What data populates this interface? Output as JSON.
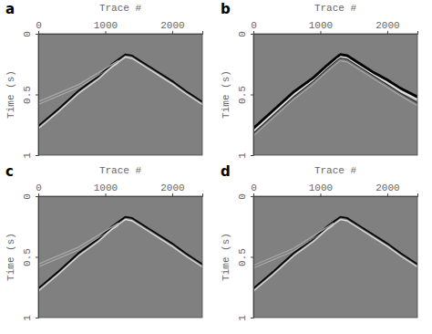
{
  "chart_data": [
    {
      "type": "line",
      "title": "a",
      "x_label": "Trace #",
      "y_label": "Time (s)",
      "xlim": [
        0,
        2450
      ],
      "ylim": [
        0,
        1
      ],
      "xticks": [
        0,
        1000,
        2000
      ],
      "yticks": [
        0,
        0.5,
        1
      ],
      "series": [
        {
          "color": "#000000",
          "x": [
            0,
            300,
            600,
            900,
            1100,
            1250,
            1300,
            1400,
            1600,
            1800,
            2000,
            2200,
            2450
          ],
          "values": [
            0.76,
            0.62,
            0.47,
            0.35,
            0.25,
            0.19,
            0.17,
            0.18,
            0.25,
            0.32,
            0.39,
            0.47,
            0.56
          ]
        },
        {
          "color": "#a8a8a8",
          "x": [
            0,
            600,
            1200
          ],
          "values": [
            0.56,
            0.42,
            0.22
          ]
        }
      ]
    },
    {
      "type": "line",
      "title": "b",
      "x_label": "Trace #",
      "y_label": "Time (s)",
      "xlim": [
        0,
        2450
      ],
      "ylim": [
        0,
        1
      ],
      "xticks": [
        0,
        1000,
        2000
      ],
      "yticks": [
        0,
        0.5,
        1
      ],
      "series": [
        {
          "color": "#000000",
          "x": [
            0,
            300,
            600,
            900,
            1100,
            1250,
            1300,
            1400,
            1600,
            1800,
            2000,
            2200,
            2450
          ],
          "values": [
            0.78,
            0.63,
            0.48,
            0.36,
            0.26,
            0.19,
            0.17,
            0.18,
            0.25,
            0.32,
            0.38,
            0.45,
            0.52
          ]
        },
        {
          "color": "#303030",
          "x": [
            0,
            300,
            600,
            900,
            1100,
            1250,
            1300,
            1400,
            1600,
            1800,
            2000,
            2200,
            2450
          ],
          "values": [
            0.82,
            0.67,
            0.52,
            0.39,
            0.29,
            0.22,
            0.2,
            0.21,
            0.28,
            0.35,
            0.42,
            0.49,
            0.57
          ]
        }
      ]
    },
    {
      "type": "line",
      "title": "c",
      "x_label": "Trace #",
      "y_label": "Time (s)",
      "xlim": [
        0,
        2450
      ],
      "ylim": [
        0,
        1
      ],
      "xticks": [
        0,
        1000,
        2000
      ],
      "yticks": [
        0,
        0.5,
        1
      ],
      "series": [
        {
          "color": "#000000",
          "x": [
            0,
            300,
            600,
            900,
            1100,
            1250,
            1300,
            1400,
            1600,
            1800,
            2000,
            2200,
            2450
          ],
          "values": [
            0.76,
            0.62,
            0.47,
            0.35,
            0.25,
            0.19,
            0.17,
            0.18,
            0.25,
            0.32,
            0.39,
            0.47,
            0.56
          ]
        },
        {
          "color": "#a8a8a8",
          "x": [
            0,
            600,
            1200
          ],
          "values": [
            0.56,
            0.42,
            0.22
          ]
        }
      ]
    },
    {
      "type": "line",
      "title": "d",
      "x_label": "Trace #",
      "y_label": "Time (s)",
      "xlim": [
        0,
        2450
      ],
      "ylim": [
        0,
        1
      ],
      "xticks": [
        0,
        1000,
        2000
      ],
      "yticks": [
        0,
        0.5,
        1
      ],
      "series": [
        {
          "color": "#000000",
          "x": [
            0,
            300,
            600,
            900,
            1100,
            1250,
            1300,
            1400,
            1600,
            1800,
            2000,
            2200,
            2450
          ],
          "values": [
            0.76,
            0.62,
            0.47,
            0.35,
            0.25,
            0.19,
            0.17,
            0.18,
            0.25,
            0.32,
            0.39,
            0.47,
            0.56
          ]
        },
        {
          "color": "#a8a8a8",
          "x": [
            0,
            600,
            1200
          ],
          "values": [
            0.57,
            0.43,
            0.22
          ]
        }
      ]
    }
  ]
}
